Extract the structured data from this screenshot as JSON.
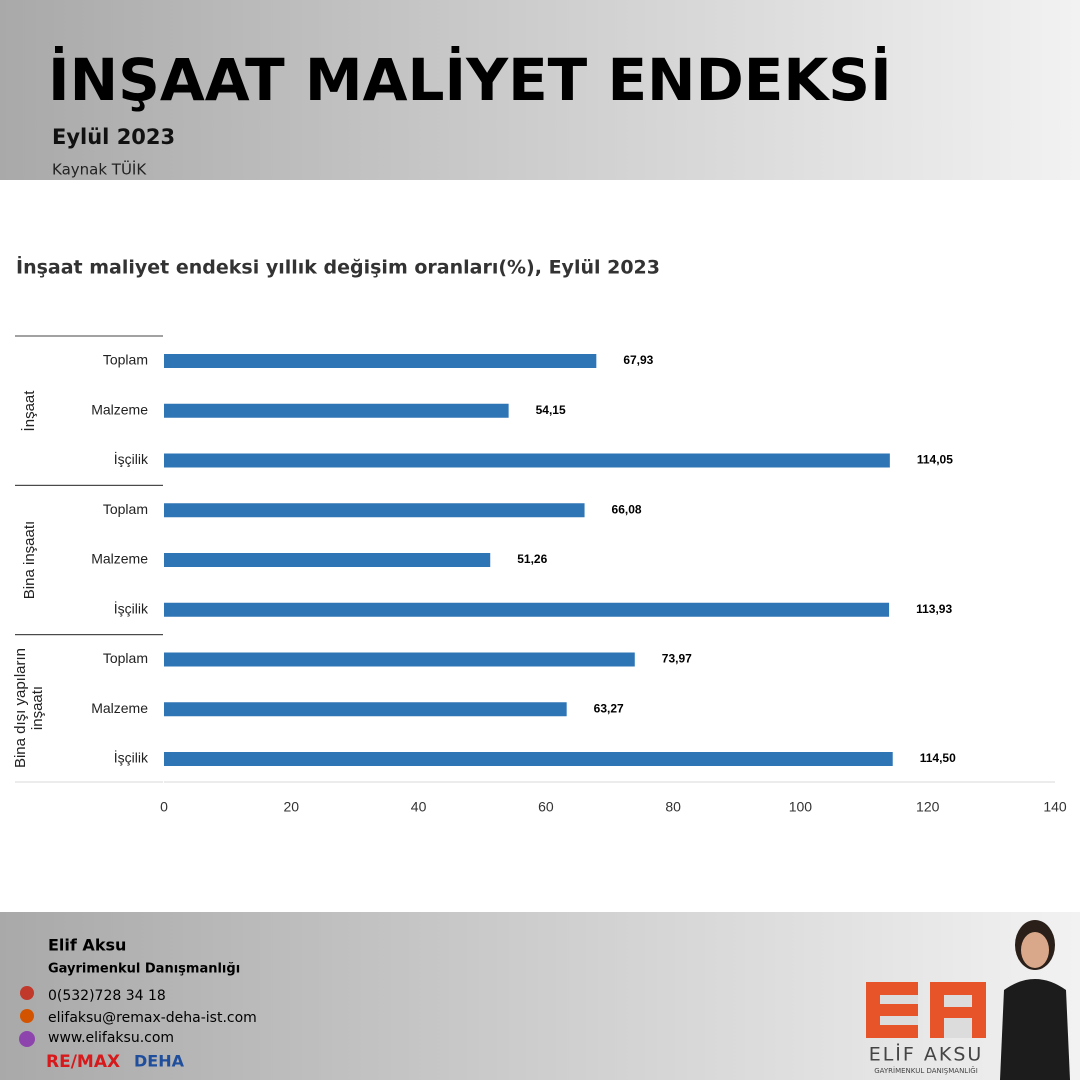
{
  "header": {
    "title": "İNŞAAT MALİYET ENDEKSİ",
    "subtitle": "Eylül 2023",
    "source": "Kaynak TÜİK"
  },
  "chart_data": {
    "type": "hbar",
    "title": "İnşaat maliyet endeksi yıllık değişim oranları(%), Eylül 2023",
    "groups": [
      "İnşaat",
      "Bina inşaatı",
      "Bina dışı yapıların inşaatı"
    ],
    "categories": [
      "Toplam",
      "Malzeme",
      "İşçilik",
      "Toplam",
      "Malzeme",
      "İşçilik",
      "Toplam",
      "Malzeme",
      "İşçilik"
    ],
    "values": [
      67.93,
      54.15,
      114.05,
      66.08,
      51.26,
      113.93,
      73.97,
      63.27,
      114.5
    ],
    "value_labels": [
      "67,93",
      "54,15",
      "114,05",
      "66,08",
      "51,26",
      "113,93",
      "73,97",
      "63,27",
      "114,50"
    ],
    "color": "#2e75b6",
    "xlim": [
      0,
      140
    ],
    "xticks": [
      0,
      20,
      40,
      60,
      80,
      100,
      120,
      140
    ]
  },
  "footer": {
    "name": "Elif Aksu",
    "role": "Gayrimenkul Danışmanlığı",
    "phone": "0(532)728 34 18",
    "email": "elifaksu@remax-deha-ist.com",
    "web": "www.elifaksu.com",
    "brand": "RE/MAX",
    "office": "DEHA",
    "logo": "EA",
    "logo_name": "ELİF AKSU",
    "logo_sub": "GAYRİMENKUL DANIŞMANLIĞI"
  }
}
